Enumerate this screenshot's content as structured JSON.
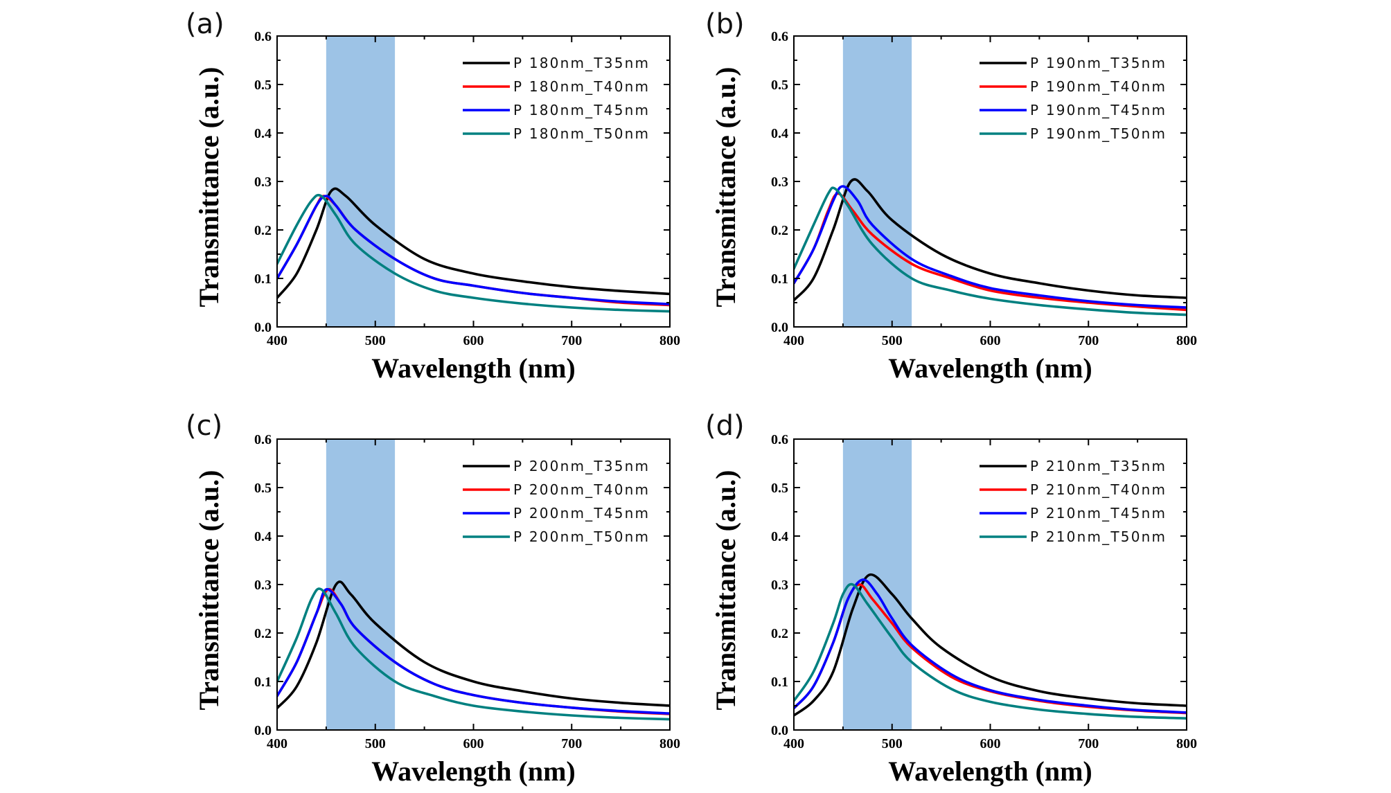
{
  "chart_data": [
    {
      "type": "line",
      "panel_label": "(a)",
      "xlabel": "Wavelength (nm)",
      "ylabel": "Transmittance (a.u.)",
      "xlim": [
        400,
        800
      ],
      "ylim": [
        0.0,
        0.6
      ],
      "xticks": [
        "400",
        "500",
        "600",
        "700",
        "800"
      ],
      "yticks": [
        "0.0",
        "0.1",
        "0.2",
        "0.3",
        "0.4",
        "0.5",
        "0.6"
      ],
      "highlight_band": [
        450,
        520
      ],
      "legend_position": "top-right",
      "series": [
        {
          "name": "P 180nm_T35nm",
          "color": "#000000",
          "x": [
            400,
            420,
            440,
            455,
            470,
            500,
            550,
            600,
            650,
            700,
            750,
            800
          ],
          "y": [
            0.06,
            0.11,
            0.2,
            0.28,
            0.27,
            0.21,
            0.14,
            0.11,
            0.094,
            0.082,
            0.074,
            0.068
          ]
        },
        {
          "name": "P 180nm_T40nm",
          "color": "#ff0000",
          "x": [
            400,
            420,
            440,
            448,
            460,
            480,
            520,
            560,
            600,
            650,
            700,
            750,
            800
          ],
          "y": [
            0.1,
            0.17,
            0.25,
            0.27,
            0.25,
            0.2,
            0.14,
            0.1,
            0.085,
            0.07,
            0.06,
            0.05,
            0.045
          ]
        },
        {
          "name": "P 180nm_T45nm",
          "color": "#0000ff",
          "x": [
            400,
            420,
            440,
            450,
            460,
            480,
            520,
            560,
            600,
            650,
            700,
            750,
            800
          ],
          "y": [
            0.1,
            0.17,
            0.25,
            0.27,
            0.25,
            0.2,
            0.14,
            0.1,
            0.085,
            0.07,
            0.06,
            0.052,
            0.047
          ]
        },
        {
          "name": "P 180nm_T50nm",
          "color": "#008080",
          "x": [
            400,
            420,
            435,
            445,
            460,
            480,
            520,
            560,
            600,
            650,
            700,
            750,
            800
          ],
          "y": [
            0.13,
            0.21,
            0.26,
            0.27,
            0.23,
            0.17,
            0.11,
            0.075,
            0.06,
            0.048,
            0.04,
            0.035,
            0.032
          ]
        }
      ]
    },
    {
      "type": "line",
      "panel_label": "(b)",
      "xlabel": "Wavelength (nm)",
      "ylabel": "Transmittance (a.u.)",
      "xlim": [
        400,
        800
      ],
      "ylim": [
        0.0,
        0.6
      ],
      "xticks": [
        "400",
        "500",
        "600",
        "700",
        "800"
      ],
      "yticks": [
        "0.0",
        "0.1",
        "0.2",
        "0.3",
        "0.4",
        "0.5",
        "0.6"
      ],
      "highlight_band": [
        450,
        520
      ],
      "legend_position": "top-right",
      "series": [
        {
          "name": "P 190nm_T35nm",
          "color": "#000000",
          "x": [
            400,
            420,
            440,
            458,
            475,
            500,
            550,
            600,
            650,
            700,
            750,
            800
          ],
          "y": [
            0.055,
            0.1,
            0.2,
            0.3,
            0.28,
            0.22,
            0.15,
            0.11,
            0.09,
            0.075,
            0.065,
            0.06
          ]
        },
        {
          "name": "P 190nm_T40nm",
          "color": "#ff0000",
          "x": [
            400,
            420,
            435,
            445,
            460,
            480,
            520,
            560,
            600,
            650,
            700,
            750,
            800
          ],
          "y": [
            0.09,
            0.16,
            0.24,
            0.275,
            0.24,
            0.19,
            0.13,
            0.1,
            0.075,
            0.06,
            0.05,
            0.042,
            0.035
          ]
        },
        {
          "name": "P 190nm_T45nm",
          "color": "#0000ff",
          "x": [
            400,
            420,
            440,
            450,
            465,
            480,
            520,
            560,
            600,
            650,
            700,
            750,
            800
          ],
          "y": [
            0.09,
            0.16,
            0.26,
            0.29,
            0.26,
            0.21,
            0.14,
            0.105,
            0.08,
            0.065,
            0.053,
            0.045,
            0.04
          ]
        },
        {
          "name": "P 190nm_T50nm",
          "color": "#008080",
          "x": [
            400,
            420,
            435,
            442,
            455,
            480,
            520,
            560,
            600,
            650,
            700,
            750,
            800
          ],
          "y": [
            0.12,
            0.21,
            0.275,
            0.285,
            0.25,
            0.17,
            0.1,
            0.075,
            0.058,
            0.045,
            0.036,
            0.029,
            0.025
          ]
        }
      ]
    },
    {
      "type": "line",
      "panel_label": "(c)",
      "xlabel": "Wavelength (nm)",
      "ylabel": "Transmittance (a.u.)",
      "xlim": [
        400,
        800
      ],
      "ylim": [
        0.0,
        0.6
      ],
      "xticks": [
        "400",
        "500",
        "600",
        "700",
        "800"
      ],
      "yticks": [
        "0.0",
        "0.1",
        "0.2",
        "0.3",
        "0.4",
        "0.5",
        "0.6"
      ],
      "highlight_band": [
        450,
        520
      ],
      "legend_position": "top-right",
      "series": [
        {
          "name": "P 200nm_T35nm",
          "color": "#000000",
          "x": [
            400,
            420,
            440,
            460,
            475,
            500,
            550,
            600,
            650,
            700,
            750,
            800
          ],
          "y": [
            0.045,
            0.09,
            0.18,
            0.3,
            0.28,
            0.22,
            0.14,
            0.1,
            0.08,
            0.065,
            0.056,
            0.05
          ]
        },
        {
          "name": "P 200nm_T40nm",
          "color": "#ff0000",
          "x": [
            400,
            420,
            440,
            452,
            465,
            480,
            520,
            560,
            600,
            650,
            700,
            750,
            800
          ],
          "y": [
            0.07,
            0.14,
            0.24,
            0.29,
            0.26,
            0.21,
            0.14,
            0.095,
            0.072,
            0.056,
            0.046,
            0.038,
            0.033
          ]
        },
        {
          "name": "P 200nm_T45nm",
          "color": "#0000ff",
          "x": [
            400,
            420,
            440,
            450,
            465,
            480,
            520,
            560,
            600,
            650,
            700,
            750,
            800
          ],
          "y": [
            0.07,
            0.14,
            0.24,
            0.29,
            0.26,
            0.21,
            0.14,
            0.095,
            0.072,
            0.056,
            0.046,
            0.039,
            0.034
          ]
        },
        {
          "name": "P 200nm_T50nm",
          "color": "#008080",
          "x": [
            400,
            420,
            435,
            445,
            460,
            480,
            520,
            560,
            600,
            650,
            700,
            750,
            800
          ],
          "y": [
            0.1,
            0.19,
            0.27,
            0.29,
            0.24,
            0.17,
            0.1,
            0.07,
            0.05,
            0.038,
            0.03,
            0.025,
            0.022
          ]
        }
      ]
    },
    {
      "type": "line",
      "panel_label": "(d)",
      "xlabel": "Wavelength (nm)",
      "ylabel": "Transmittance (a.u.)",
      "xlim": [
        400,
        800
      ],
      "ylim": [
        0.0,
        0.6
      ],
      "xticks": [
        "400",
        "500",
        "600",
        "700",
        "800"
      ],
      "yticks": [
        "0.0",
        "0.1",
        "0.2",
        "0.3",
        "0.4",
        "0.5",
        "0.6"
      ],
      "highlight_band": [
        450,
        520
      ],
      "legend_position": "top-right",
      "series": [
        {
          "name": "P 210nm_T35nm",
          "color": "#000000",
          "x": [
            400,
            420,
            440,
            460,
            477,
            500,
            520,
            550,
            600,
            650,
            700,
            750,
            800
          ],
          "y": [
            0.03,
            0.06,
            0.12,
            0.25,
            0.32,
            0.28,
            0.23,
            0.17,
            0.11,
            0.08,
            0.065,
            0.055,
            0.05
          ]
        },
        {
          "name": "P 210nm_T40nm",
          "color": "#ff0000",
          "x": [
            400,
            420,
            440,
            455,
            467,
            480,
            500,
            520,
            560,
            600,
            650,
            700,
            750,
            800
          ],
          "y": [
            0.045,
            0.09,
            0.18,
            0.27,
            0.3,
            0.27,
            0.22,
            0.17,
            0.11,
            0.08,
            0.06,
            0.048,
            0.04,
            0.035
          ]
        },
        {
          "name": "P 210nm_T45nm",
          "color": "#0000ff",
          "x": [
            400,
            420,
            440,
            455,
            470,
            485,
            500,
            520,
            560,
            600,
            650,
            700,
            750,
            800
          ],
          "y": [
            0.045,
            0.09,
            0.18,
            0.27,
            0.31,
            0.28,
            0.23,
            0.175,
            0.115,
            0.082,
            0.062,
            0.05,
            0.041,
            0.036
          ]
        },
        {
          "name": "P 210nm_T50nm",
          "color": "#008080",
          "x": [
            400,
            420,
            440,
            450,
            460,
            475,
            500,
            520,
            560,
            600,
            650,
            700,
            750,
            800
          ],
          "y": [
            0.06,
            0.12,
            0.22,
            0.28,
            0.3,
            0.26,
            0.19,
            0.14,
            0.085,
            0.058,
            0.042,
            0.033,
            0.027,
            0.024
          ]
        }
      ]
    }
  ]
}
